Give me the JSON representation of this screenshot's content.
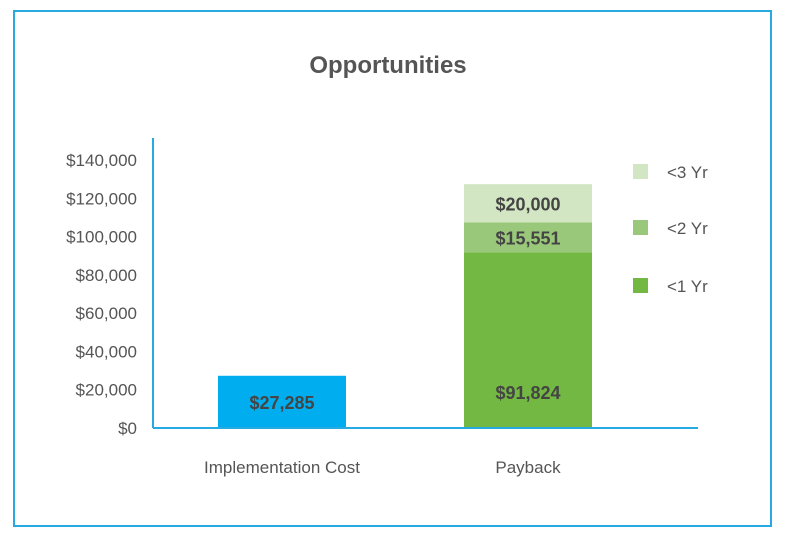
{
  "chart_data": {
    "type": "bar",
    "stacked": true,
    "title": "Opportunities",
    "xlabel": "",
    "ylabel": "",
    "categories": [
      "Implementation Cost",
      "Payback"
    ],
    "ylim": [
      0,
      140000
    ],
    "yticks": [
      0,
      20000,
      40000,
      60000,
      80000,
      100000,
      120000,
      140000
    ],
    "ytick_labels": [
      "$0",
      "$20,000",
      "$40,000",
      "$60,000",
      "$80,000",
      "$100,000",
      "$120,000",
      "$140,000"
    ],
    "grid": false,
    "legend_position": "right",
    "series": [
      {
        "name": "",
        "values": [
          27285,
          null
        ],
        "labels": [
          "$27,285",
          ""
        ],
        "color": "#00aeef"
      },
      {
        "name": "<1 Yr",
        "values": [
          null,
          91824
        ],
        "labels": [
          "",
          "$91,824"
        ],
        "color": "#73b843"
      },
      {
        "name": "<2 Yr",
        "values": [
          null,
          15551
        ],
        "labels": [
          "",
          "$15,551"
        ],
        "color": "#9ac87a"
      },
      {
        "name": "<3 Yr",
        "values": [
          null,
          20000
        ],
        "labels": [
          "",
          "$20,000"
        ],
        "color": "#d3e6c3"
      }
    ],
    "legend": [
      "<3 Yr",
      "<2 Yr",
      "<1 Yr"
    ]
  }
}
